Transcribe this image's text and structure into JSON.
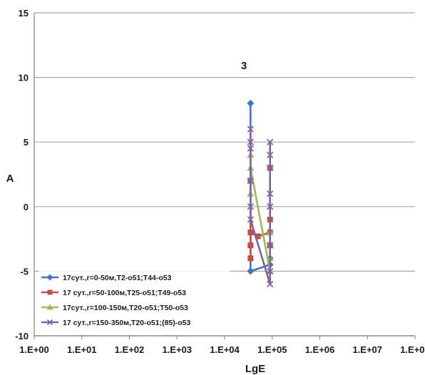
{
  "chart_data": {
    "type": "line",
    "title": "",
    "xlabel": "LgE",
    "ylabel": "A",
    "x_scale": "log",
    "xlim": [
      1,
      100000000
    ],
    "ylim": [
      -10,
      15
    ],
    "x_ticks": [
      {
        "value": 1,
        "label": "1.E+00"
      },
      {
        "value": 10,
        "label": "1.E+01"
      },
      {
        "value": 100,
        "label": "1.E+02"
      },
      {
        "value": 1000,
        "label": "1.E+03"
      },
      {
        "value": 10000,
        "label": "1.E+04"
      },
      {
        "value": 100000,
        "label": "1.E+05"
      },
      {
        "value": 1000000,
        "label": "1.E+06"
      },
      {
        "value": 10000000,
        "label": "1.E+07"
      },
      {
        "value": 100000000,
        "label": "1.E+08"
      }
    ],
    "y_ticks": [
      {
        "value": 15,
        "label": "15"
      },
      {
        "value": 10,
        "label": "10"
      },
      {
        "value": 5,
        "label": "5"
      },
      {
        "value": 0,
        "label": "0"
      },
      {
        "value": -5,
        "label": "-5"
      },
      {
        "value": -10,
        "label": "-10"
      }
    ],
    "grid": "horizontal",
    "legend_position": "bottom-left",
    "annotation": "3",
    "series": [
      {
        "name": "17сут.,r=0-50м,T2-o51;T44-o53",
        "color": "#4472c4",
        "marker": "diamond",
        "points": [
          [
            35000,
            8
          ],
          [
            35000,
            -5
          ],
          [
            90000,
            -4.5
          ],
          [
            90000,
            -4
          ]
        ]
      },
      {
        "name": "17 сут.,r=50-100м,T25-o51;T49-o53",
        "color": "#c0504d",
        "marker": "square",
        "points": [
          [
            35000,
            2
          ],
          [
            35000,
            -4
          ],
          [
            35000,
            -3
          ],
          [
            35000,
            -2
          ],
          [
            50000,
            -2.3
          ],
          [
            90000,
            -2
          ],
          [
            90000,
            -1
          ],
          [
            90000,
            3
          ],
          [
            90000,
            -3
          ]
        ]
      },
      {
        "name": "17сут.,r=100-150м,T20-o51;T50-o53",
        "color": "#9bbb59",
        "marker": "triangle",
        "points": [
          [
            35000,
            4
          ],
          [
            35000,
            1
          ],
          [
            35000,
            3
          ],
          [
            90000,
            -5
          ],
          [
            90000,
            -4
          ],
          [
            90000,
            -2
          ]
        ]
      },
      {
        "name": "17 сут.,r=150-350м,T20-o51;(85)-o53",
        "color": "#8064a2",
        "marker": "x",
        "points": [
          [
            35000,
            6
          ],
          [
            35000,
            5
          ],
          [
            35000,
            4.5
          ],
          [
            35000,
            2
          ],
          [
            35000,
            0
          ],
          [
            35000,
            -1
          ],
          [
            90000,
            -6
          ],
          [
            90000,
            -5
          ],
          [
            90000,
            -3
          ],
          [
            90000,
            0
          ],
          [
            90000,
            1
          ],
          [
            90000,
            3
          ],
          [
            90000,
            4
          ],
          [
            90000,
            5
          ]
        ]
      }
    ]
  }
}
